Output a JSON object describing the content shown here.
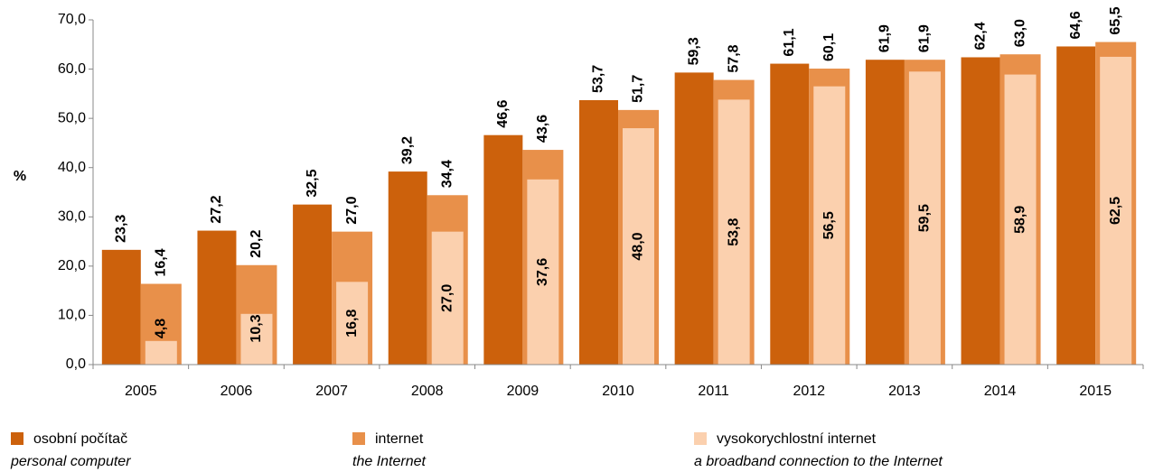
{
  "chart_data": {
    "type": "bar",
    "y_label": "%",
    "categories": [
      "2005",
      "2006",
      "2007",
      "2008",
      "2009",
      "2010",
      "2011",
      "2012",
      "2013",
      "2014",
      "2015"
    ],
    "series": [
      {
        "name": "osobní počítač",
        "name_en": "personal computer",
        "color": "#cc610c",
        "values": [
          23.3,
          27.2,
          32.5,
          39.2,
          46.6,
          53.7,
          59.3,
          61.1,
          61.9,
          62.4,
          64.6
        ],
        "value_labels": [
          "23,3",
          "27,2",
          "32,5",
          "39,2",
          "46,6",
          "53,7",
          "59,3",
          "61,1",
          "61,9",
          "62,4",
          "64,6"
        ]
      },
      {
        "name": "internet",
        "name_en": "the Internet",
        "color": "#e8904a",
        "values": [
          16.4,
          20.2,
          27.0,
          34.4,
          43.6,
          51.7,
          57.8,
          60.1,
          61.9,
          63.0,
          65.5
        ],
        "value_labels": [
          "16,4",
          "20,2",
          "27,0",
          "34,4",
          "43,6",
          "51,7",
          "57,8",
          "60,1",
          "61,9",
          "63,0",
          "65,5"
        ]
      },
      {
        "name": "vysokorychlostní internet",
        "name_en": "a broadband connection to the Internet",
        "color": "#fbd0ae",
        "values": [
          4.8,
          10.3,
          16.8,
          27.0,
          37.6,
          48.0,
          53.8,
          56.5,
          59.5,
          58.9,
          62.5
        ],
        "value_labels": [
          "4,8",
          "10,3",
          "16,8",
          "27,0",
          "37,6",
          "48,0",
          "53,8",
          "56,5",
          "59,5",
          "58,9",
          "62,5"
        ]
      }
    ],
    "ylim": [
      0,
      70
    ],
    "yticks": [
      {
        "value": 0,
        "label": "0,0"
      },
      {
        "value": 10,
        "label": "10,0"
      },
      {
        "value": 20,
        "label": "20,0"
      },
      {
        "value": 30,
        "label": "30,0"
      },
      {
        "value": 40,
        "label": "40,0"
      },
      {
        "value": 50,
        "label": "50,0"
      },
      {
        "value": 60,
        "label": "60,0"
      },
      {
        "value": 70,
        "label": "70,0"
      }
    ],
    "grid": false,
    "legend": "bottom"
  }
}
